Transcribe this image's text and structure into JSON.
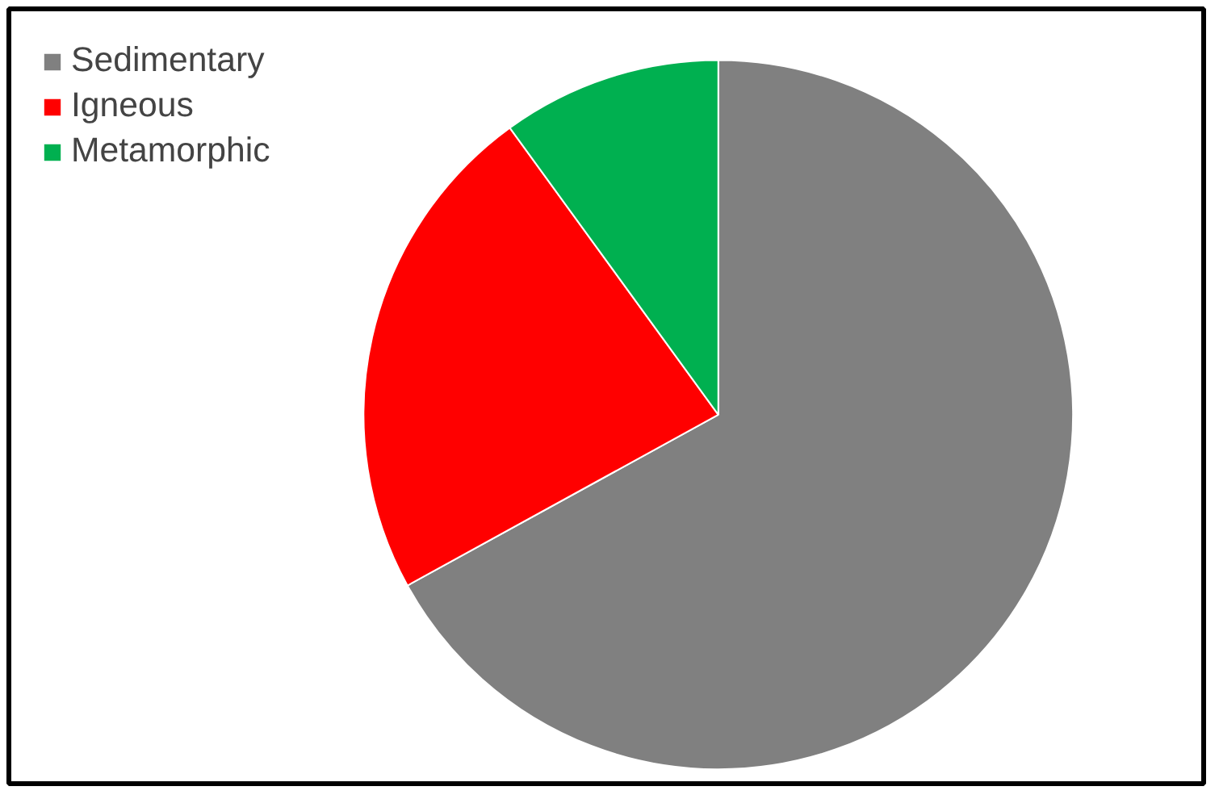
{
  "chart_data": {
    "type": "pie",
    "categories": [
      "Sedimentary",
      "Igneous",
      "Metamorphic"
    ],
    "values": [
      67,
      23,
      10
    ],
    "colors": [
      "#808080",
      "#ff0000",
      "#00b050"
    ],
    "legend": "top left"
  }
}
